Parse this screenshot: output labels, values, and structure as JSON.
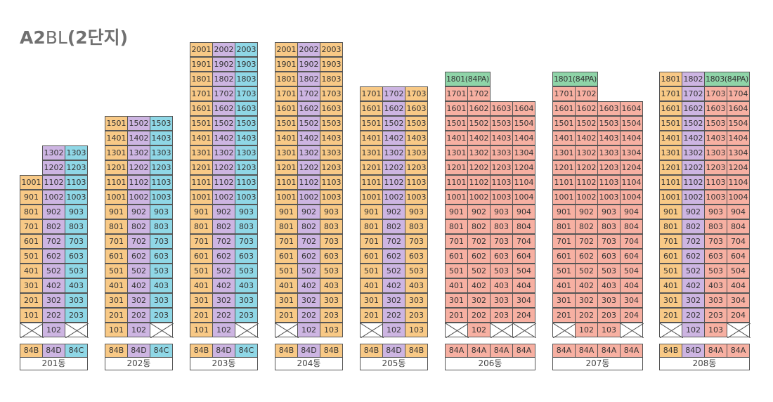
{
  "title": {
    "part_bold": "A2",
    "part_light": "BL",
    "part_paren": "(2단지)"
  },
  "colors": {
    "84B": "#f8c986",
    "84D": "#cdb5e2",
    "84C": "#8fd7e6",
    "84A": "#f7b0a2",
    "84PA": "#8fd4a8"
  },
  "buildings": [
    {
      "label": "201동",
      "types": [
        "84B",
        "84D",
        "84C"
      ],
      "lines": [
        {
          "type": "84B",
          "units": [
            "X",
            "101",
            "201",
            "301",
            "401",
            "501",
            "601",
            "701",
            "801",
            "901",
            "1001"
          ]
        },
        {
          "type": "84D",
          "units": [
            "102",
            "202",
            "302",
            "402",
            "502",
            "602",
            "702",
            "802",
            "902",
            "1002",
            "1102",
            "1202",
            "1302"
          ]
        },
        {
          "type": "84C",
          "units": [
            "X",
            "203",
            "303",
            "403",
            "503",
            "603",
            "703",
            "803",
            "903",
            "1003",
            "1103",
            "1203",
            "1303"
          ]
        }
      ]
    },
    {
      "label": "202동",
      "types": [
        "84B",
        "84D",
        "84C"
      ],
      "lines": [
        {
          "type": "84B",
          "units": [
            "101",
            "201",
            "301",
            "401",
            "501",
            "601",
            "701",
            "801",
            "901",
            "1001",
            "1101",
            "1201",
            "1301",
            "1401",
            "1501"
          ]
        },
        {
          "type": "84D",
          "units": [
            "102",
            "202",
            "302",
            "402",
            "502",
            "602",
            "702",
            "802",
            "902",
            "1002",
            "1102",
            "1202",
            "1302",
            "1402",
            "1502"
          ]
        },
        {
          "type": "84C",
          "units": [
            "X",
            "203",
            "303",
            "403",
            "503",
            "603",
            "703",
            "803",
            "903",
            "1003",
            "1103",
            "1203",
            "1303",
            "1403",
            "1503"
          ]
        }
      ]
    },
    {
      "label": "203동",
      "types": [
        "84B",
        "84D",
        "84C"
      ],
      "lines": [
        {
          "type": "84B",
          "units": [
            "101",
            "201",
            "301",
            "401",
            "501",
            "601",
            "701",
            "801",
            "901",
            "1001",
            "1101",
            "1201",
            "1301",
            "1401",
            "1501",
            "1601",
            "1701",
            "1801",
            "1901",
            "2001"
          ]
        },
        {
          "type": "84D",
          "units": [
            "102",
            "202",
            "302",
            "402",
            "502",
            "602",
            "702",
            "802",
            "902",
            "1002",
            "1102",
            "1202",
            "1302",
            "1402",
            "1502",
            "1602",
            "1702",
            "1802",
            "1902",
            "2002"
          ]
        },
        {
          "type": "84C",
          "units": [
            "X",
            "203",
            "303",
            "403",
            "503",
            "603",
            "703",
            "803",
            "903",
            "1003",
            "1103",
            "1203",
            "1303",
            "1403",
            "1503",
            "1603",
            "1703",
            "1803",
            "1903",
            "2003"
          ]
        }
      ]
    },
    {
      "label": "204동",
      "types": [
        "84B",
        "84D",
        "84B"
      ],
      "lines": [
        {
          "type": "84B",
          "units": [
            "X",
            "201",
            "301",
            "401",
            "501",
            "601",
            "701",
            "801",
            "901",
            "1001",
            "1101",
            "1201",
            "1301",
            "1401",
            "1501",
            "1601",
            "1701",
            "1801",
            "1901",
            "2001"
          ]
        },
        {
          "type": "84D",
          "units": [
            "102",
            "202",
            "302",
            "402",
            "502",
            "602",
            "702",
            "802",
            "902",
            "1002",
            "1102",
            "1202",
            "1302",
            "1402",
            "1502",
            "1602",
            "1702",
            "1802",
            "1902",
            "2002"
          ]
        },
        {
          "type": "84B",
          "units": [
            "103",
            "203",
            "303",
            "403",
            "503",
            "603",
            "703",
            "803",
            "903",
            "1003",
            "1103",
            "1203",
            "1303",
            "1403",
            "1503",
            "1603",
            "1703",
            "1803",
            "1903",
            "2003"
          ]
        }
      ]
    },
    {
      "label": "205동",
      "types": [
        "84B",
        "84D",
        "84B"
      ],
      "lines": [
        {
          "type": "84B",
          "units": [
            "X",
            "201",
            "301",
            "401",
            "501",
            "601",
            "701",
            "801",
            "901",
            "1001",
            "1101",
            "1201",
            "1301",
            "1401",
            "1501",
            "1601",
            "1701"
          ]
        },
        {
          "type": "84D",
          "units": [
            "102",
            "202",
            "302",
            "402",
            "502",
            "602",
            "702",
            "802",
            "902",
            "1002",
            "1102",
            "1202",
            "1302",
            "1402",
            "1502",
            "1602",
            "1702"
          ]
        },
        {
          "type": "84B",
          "units": [
            "103",
            "203",
            "303",
            "403",
            "503",
            "603",
            "703",
            "803",
            "903",
            "1003",
            "1103",
            "1203",
            "1303",
            "1403",
            "1503",
            "1603",
            "1703"
          ]
        }
      ]
    },
    {
      "label": "206동",
      "types": [
        "84A",
        "84A",
        "84A",
        "84A"
      ],
      "top_label": "1801(84PA)",
      "lines": [
        {
          "type": "84A",
          "units": [
            "X",
            "201",
            "301",
            "401",
            "501",
            "601",
            "701",
            "801",
            "901",
            "1001",
            "1101",
            "1201",
            "1301",
            "1401",
            "1501",
            "1601",
            "1701"
          ]
        },
        {
          "type": "84A",
          "units": [
            "102",
            "202",
            "302",
            "402",
            "502",
            "602",
            "702",
            "802",
            "902",
            "1002",
            "1102",
            "1202",
            "1302",
            "1402",
            "1502",
            "1602",
            "1702"
          ]
        },
        {
          "type": "84A",
          "units": [
            "X",
            "203",
            "303",
            "403",
            "503",
            "603",
            "703",
            "803",
            "903",
            "1003",
            "1103",
            "1203",
            "1303",
            "1403",
            "1503",
            "1603"
          ]
        },
        {
          "type": "84A",
          "units": [
            "X",
            "204",
            "304",
            "404",
            "504",
            "604",
            "704",
            "804",
            "904",
            "1004",
            "1104",
            "1204",
            "1304",
            "1404",
            "1504",
            "1604"
          ]
        }
      ]
    },
    {
      "label": "207동",
      "types": [
        "84A",
        "84A",
        "84A",
        "84A"
      ],
      "top_label": "1801(84PA)",
      "lines": [
        {
          "type": "84A",
          "units": [
            "X",
            "201",
            "301",
            "401",
            "501",
            "601",
            "701",
            "801",
            "901",
            "1001",
            "1101",
            "1201",
            "1301",
            "1401",
            "1501",
            "1601",
            "1701"
          ]
        },
        {
          "type": "84A",
          "units": [
            "102",
            "202",
            "302",
            "402",
            "502",
            "602",
            "702",
            "802",
            "902",
            "1002",
            "1102",
            "1202",
            "1302",
            "1402",
            "1502",
            "1602",
            "1702"
          ]
        },
        {
          "type": "84A",
          "units": [
            "103",
            "203",
            "303",
            "403",
            "503",
            "603",
            "703",
            "803",
            "903",
            "1003",
            "1103",
            "1203",
            "1303",
            "1403",
            "1503",
            "1603"
          ]
        },
        {
          "type": "84A",
          "units": [
            "X",
            "204",
            "304",
            "404",
            "504",
            "604",
            "704",
            "804",
            "904",
            "1004",
            "1104",
            "1204",
            "1304",
            "1404",
            "1504",
            "1604"
          ]
        }
      ]
    },
    {
      "label": "208동",
      "types": [
        "84B",
        "84D",
        "84A",
        "84A"
      ],
      "top_label": "1803(84PA)",
      "lines": [
        {
          "type": "84B",
          "units": [
            "X",
            "201",
            "301",
            "401",
            "501",
            "601",
            "701",
            "801",
            "901",
            "1001",
            "1101",
            "1201",
            "1301",
            "1401",
            "1501",
            "1601",
            "1701",
            "1801"
          ]
        },
        {
          "type": "84D",
          "units": [
            "102",
            "202",
            "302",
            "402",
            "502",
            "602",
            "702",
            "802",
            "902",
            "1002",
            "1102",
            "1202",
            "1302",
            "1402",
            "1502",
            "1602",
            "1702",
            "1802"
          ]
        },
        {
          "type": "84A",
          "units": [
            "103",
            "203",
            "303",
            "403",
            "503",
            "603",
            "703",
            "803",
            "903",
            "1003",
            "1103",
            "1203",
            "1303",
            "1403",
            "1503",
            "1603",
            "1703"
          ]
        },
        {
          "type": "84A",
          "units": [
            "X",
            "204",
            "304",
            "404",
            "504",
            "604",
            "704",
            "804",
            "904",
            "1004",
            "1104",
            "1204",
            "1304",
            "1404",
            "1504",
            "1604",
            "1704"
          ]
        }
      ]
    }
  ]
}
